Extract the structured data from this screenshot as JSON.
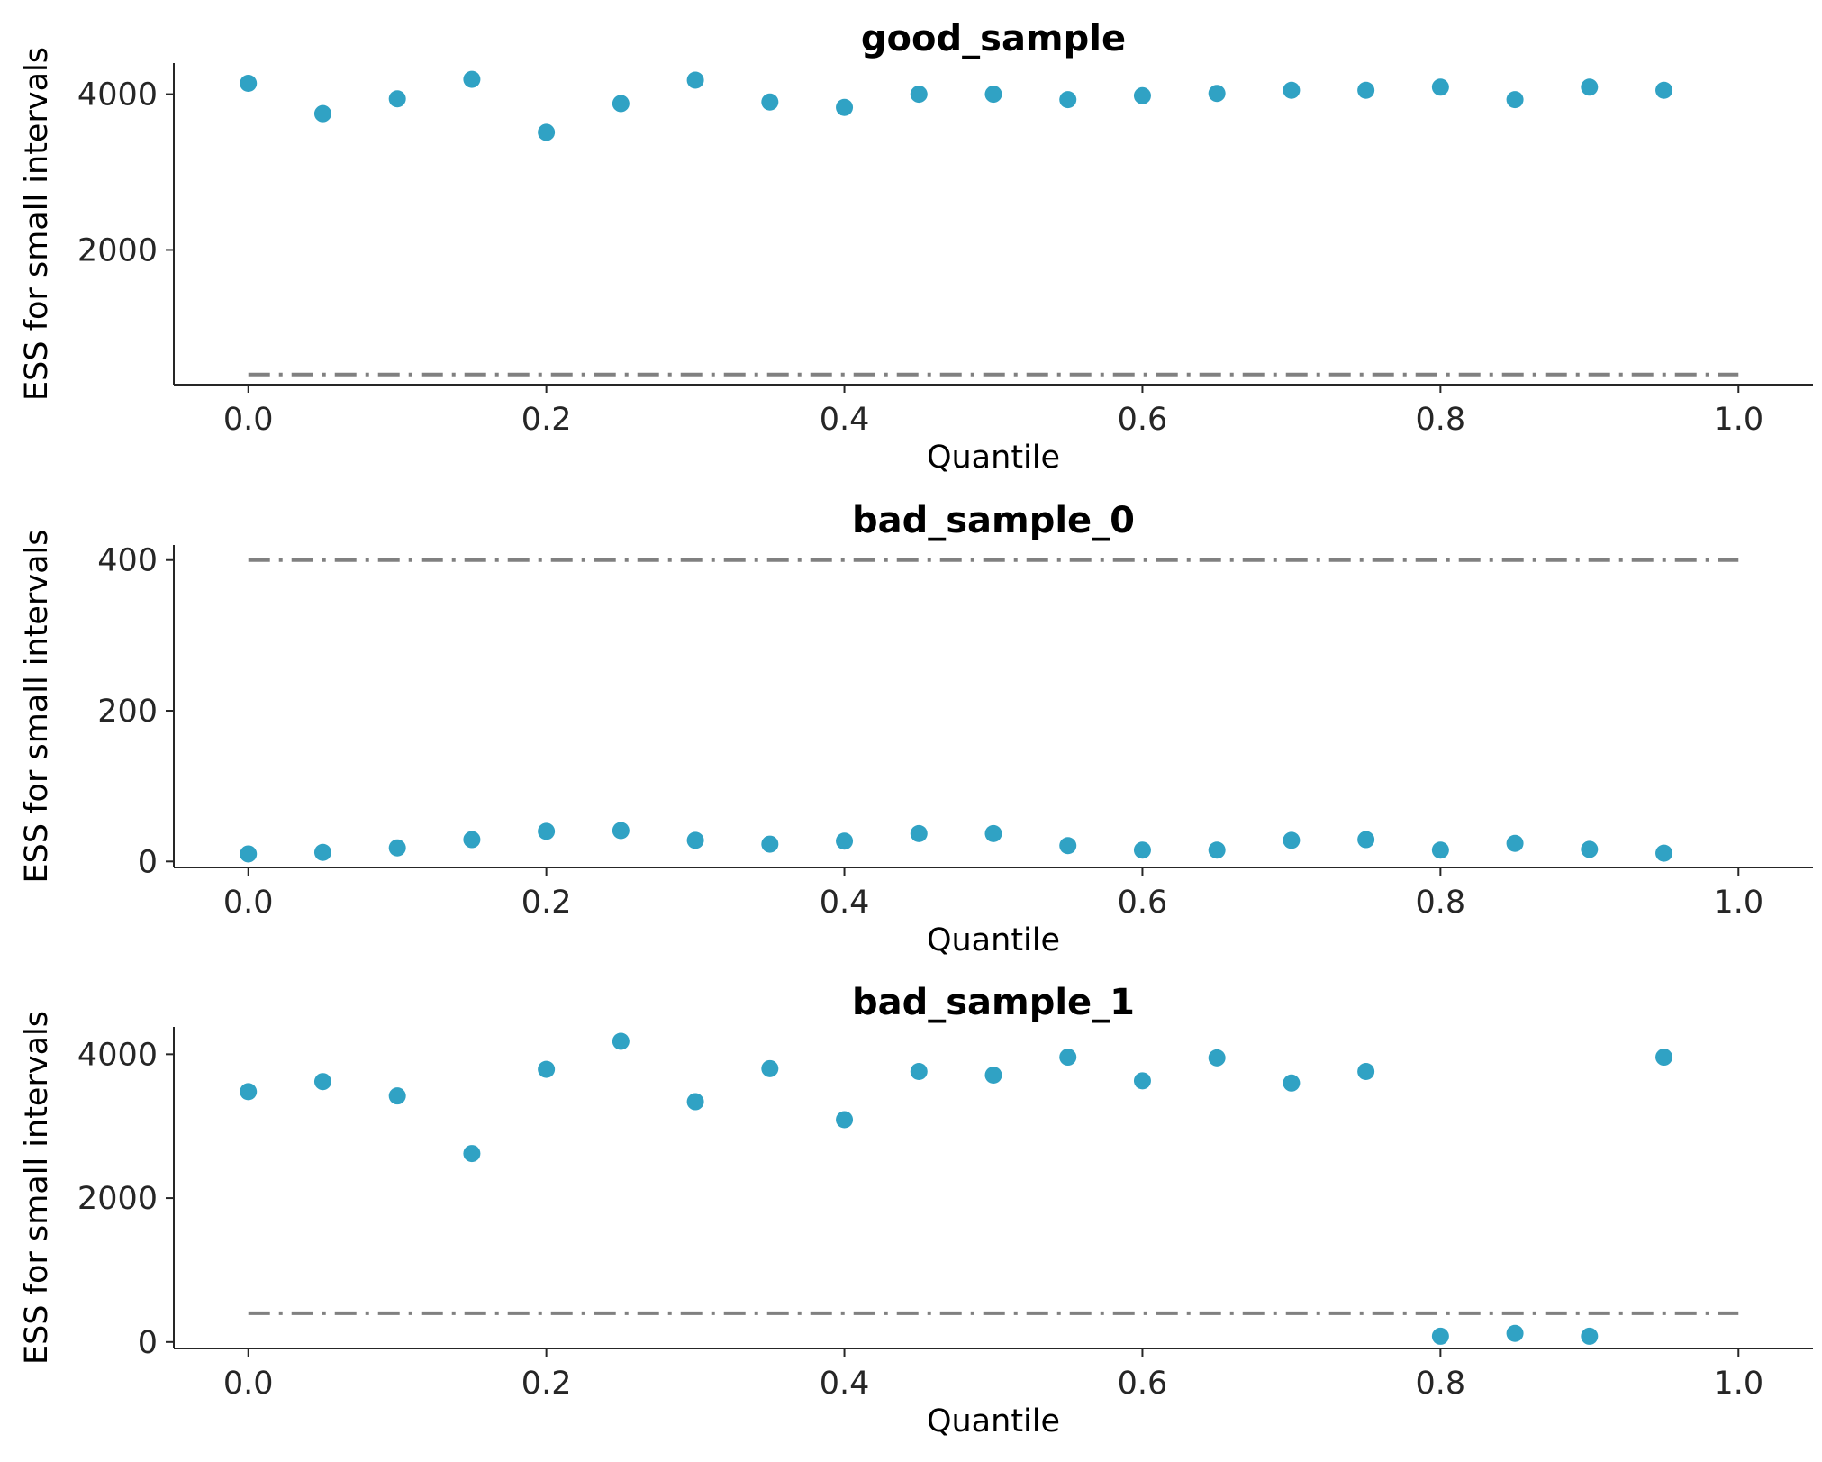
{
  "chart_data": [
    {
      "type": "scatter",
      "title": "good_sample",
      "xlabel": "Quantile",
      "ylabel": "ESS for small intervals",
      "xlim": [
        -0.05,
        1.05
      ],
      "ylim": [
        270,
        4400
      ],
      "xticks": [
        0.0,
        0.2,
        0.4,
        0.6,
        0.8,
        1.0
      ],
      "xtick_labels": [
        "0.0",
        "0.2",
        "0.4",
        "0.6",
        "0.8",
        "1.0"
      ],
      "yticks": [
        2000,
        4000
      ],
      "ytick_labels": [
        "2000",
        "4000"
      ],
      "reference_line": {
        "y": 400,
        "x": [
          0.0,
          1.0
        ],
        "style": "dash-dot",
        "color": "#808080"
      },
      "marker_color": "#30a2c4",
      "x": [
        0.0,
        0.05,
        0.1,
        0.15,
        0.2,
        0.25,
        0.3,
        0.35,
        0.4,
        0.45,
        0.5,
        0.55,
        0.6,
        0.65,
        0.7,
        0.75,
        0.8,
        0.85,
        0.9,
        0.95
      ],
      "y": [
        4140,
        3750,
        3940,
        4190,
        3510,
        3880,
        4180,
        3900,
        3830,
        4000,
        4000,
        3930,
        3980,
        4010,
        4050,
        4050,
        4090,
        3930,
        4090,
        4050
      ]
    },
    {
      "type": "scatter",
      "title": "bad_sample_0",
      "xlabel": "Quantile",
      "ylabel": "ESS for small intervals",
      "xlim": [
        -0.05,
        1.05
      ],
      "ylim": [
        -8,
        420
      ],
      "xticks": [
        0.0,
        0.2,
        0.4,
        0.6,
        0.8,
        1.0
      ],
      "xtick_labels": [
        "0.0",
        "0.2",
        "0.4",
        "0.6",
        "0.8",
        "1.0"
      ],
      "yticks": [
        0,
        200,
        400
      ],
      "ytick_labels": [
        "0",
        "200",
        "400"
      ],
      "reference_line": {
        "y": 400,
        "x": [
          0.0,
          1.0
        ],
        "style": "dash-dot",
        "color": "#808080"
      },
      "marker_color": "#30a2c4",
      "x": [
        0.0,
        0.05,
        0.1,
        0.15,
        0.2,
        0.25,
        0.3,
        0.35,
        0.4,
        0.45,
        0.5,
        0.55,
        0.6,
        0.65,
        0.7,
        0.75,
        0.8,
        0.85,
        0.9,
        0.95
      ],
      "y": [
        10,
        12,
        18,
        29,
        40,
        41,
        28,
        23,
        27,
        37,
        37,
        21,
        15,
        15,
        28,
        29,
        15,
        24,
        16,
        11
      ]
    },
    {
      "type": "scatter",
      "title": "bad_sample_1",
      "xlabel": "Quantile",
      "ylabel": "ESS for small intervals",
      "xlim": [
        -0.05,
        1.05
      ],
      "ylim": [
        -90,
        4380
      ],
      "xticks": [
        0.0,
        0.2,
        0.4,
        0.6,
        0.8,
        1.0
      ],
      "xtick_labels": [
        "0.0",
        "0.2",
        "0.4",
        "0.6",
        "0.8",
        "1.0"
      ],
      "yticks": [
        0,
        2000,
        4000
      ],
      "ytick_labels": [
        "0",
        "2000",
        "4000"
      ],
      "reference_line": {
        "y": 400,
        "x": [
          0.0,
          1.0
        ],
        "style": "dash-dot",
        "color": "#808080"
      },
      "marker_color": "#30a2c4",
      "x": [
        0.0,
        0.05,
        0.1,
        0.15,
        0.2,
        0.25,
        0.3,
        0.35,
        0.4,
        0.45,
        0.5,
        0.55,
        0.6,
        0.65,
        0.7,
        0.75,
        0.8,
        0.85,
        0.9,
        0.95
      ],
      "y": [
        3480,
        3620,
        3420,
        2620,
        3790,
        4180,
        3340,
        3800,
        3090,
        3760,
        3710,
        3960,
        3630,
        3950,
        3600,
        3760,
        80,
        120,
        80,
        3960
      ]
    }
  ]
}
